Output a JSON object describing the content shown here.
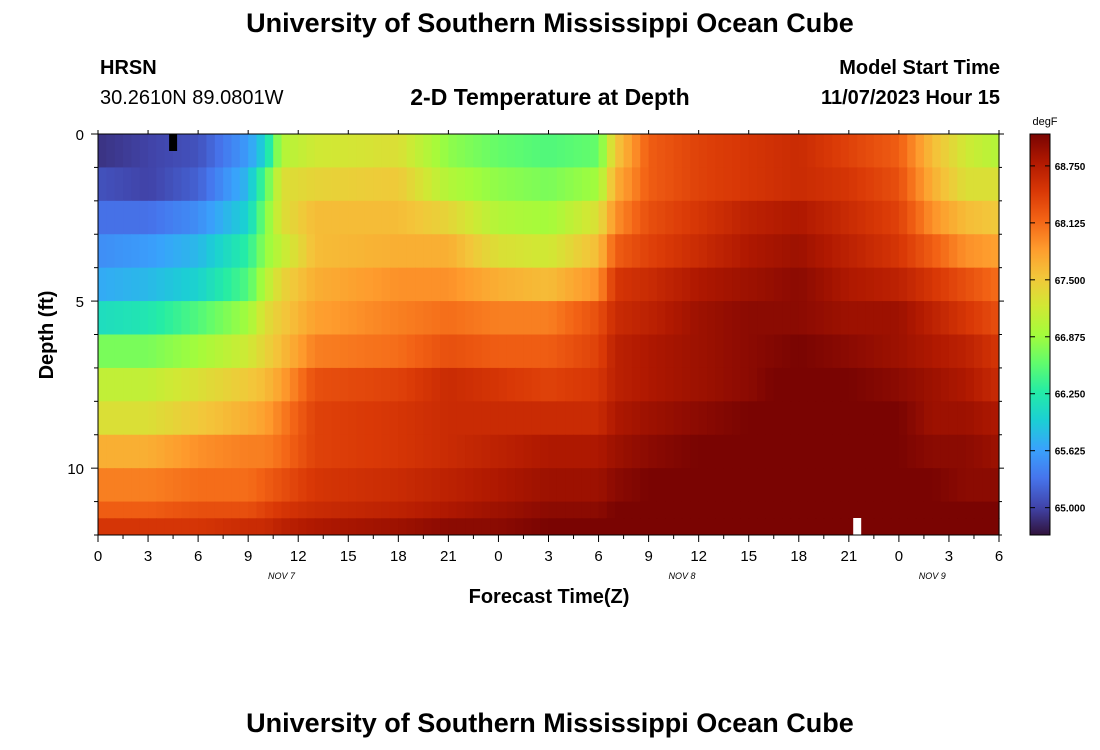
{
  "header": {
    "title": "University of Southern Mississippi Ocean Cube",
    "station_name": "HRSN",
    "station_coords": "30.2610N  89.0801W",
    "chart_heading": "2-D Temperature at Depth",
    "model_start_label": "Model Start Time",
    "model_start_value": "11/07/2023 Hour 15"
  },
  "footer": {
    "title": "University of Southern Mississippi Ocean Cube"
  },
  "chart_data": {
    "type": "heatmap",
    "title": "2-D Temperature at Depth",
    "xlabel": "Forecast Time(Z)",
    "ylabel": "Depth (ft)",
    "x_tick_labels": [
      "0",
      "3",
      "6",
      "9",
      "12",
      "15",
      "18",
      "21",
      "0",
      "3",
      "6",
      "9",
      "12",
      "15",
      "18",
      "21",
      "0",
      "3",
      "6"
    ],
    "x_date_labels": [
      {
        "label": "NOV 7",
        "hour": 11
      },
      {
        "label": "NOV 8",
        "hour": 35
      },
      {
        "label": "NOV 9",
        "hour": 50
      }
    ],
    "x_range_hours": [
      0,
      54
    ],
    "y_ticks": [
      0,
      5,
      10
    ],
    "y_range_ft": [
      0,
      12
    ],
    "colorbar": {
      "unit": "degF",
      "min": 64.7,
      "max": 69.1,
      "ticks": [
        65.0,
        65.625,
        66.25,
        66.875,
        67.5,
        68.125,
        68.75
      ],
      "tick_labels": [
        "65.000",
        "65.625",
        "66.250",
        "66.875",
        "67.500",
        "68.125",
        "68.750"
      ]
    },
    "depth_rows_ft": [
      0.5,
      1.5,
      2.5,
      3.5,
      4.5,
      5.5,
      6.5,
      7.5,
      8.5,
      9.5,
      10.5,
      11.5
    ],
    "bottom_row_depth_ft": 11.75,
    "keypoint_hours": [
      0,
      3,
      6,
      9,
      10,
      11,
      13,
      18,
      21,
      24,
      27,
      30,
      31,
      33,
      36,
      39,
      42,
      45,
      48,
      50,
      52,
      54
    ],
    "rows_degF": [
      [
        64.9,
        65.0,
        65.1,
        65.6,
        66.0,
        67.0,
        67.2,
        67.3,
        66.8,
        66.6,
        66.5,
        66.6,
        67.5,
        68.2,
        68.4,
        68.5,
        68.6,
        68.4,
        68.2,
        67.6,
        67.2,
        67.0
      ],
      [
        65.1,
        65.0,
        65.2,
        65.8,
        66.5,
        67.3,
        67.4,
        67.5,
        67.0,
        66.8,
        66.7,
        66.9,
        67.7,
        68.2,
        68.4,
        68.5,
        68.6,
        68.5,
        68.3,
        67.7,
        67.3,
        67.3
      ],
      [
        65.3,
        65.3,
        65.5,
        66.0,
        66.7,
        67.3,
        67.6,
        67.6,
        67.4,
        67.0,
        66.9,
        67.3,
        67.9,
        68.3,
        68.5,
        68.7,
        68.8,
        68.6,
        68.4,
        67.9,
        67.6,
        67.5
      ],
      [
        65.5,
        65.6,
        65.8,
        66.3,
        66.8,
        67.1,
        67.6,
        67.7,
        67.7,
        67.3,
        67.2,
        67.6,
        68.2,
        68.4,
        68.6,
        68.8,
        68.9,
        68.7,
        68.5,
        68.2,
        67.9,
        67.8
      ],
      [
        65.7,
        65.8,
        66.0,
        66.5,
        67.0,
        67.4,
        67.7,
        67.9,
        67.9,
        67.7,
        67.6,
        67.9,
        68.5,
        68.6,
        68.8,
        68.9,
        69.0,
        68.8,
        68.7,
        68.5,
        68.3,
        68.1
      ],
      [
        66.1,
        66.2,
        66.5,
        66.9,
        67.3,
        67.5,
        67.8,
        68.0,
        68.1,
        68.0,
        68.0,
        68.3,
        68.6,
        68.7,
        68.9,
        69.0,
        69.0,
        68.9,
        68.9,
        68.7,
        68.5,
        68.3
      ],
      [
        66.7,
        66.7,
        66.9,
        67.2,
        67.4,
        67.6,
        68.0,
        68.1,
        68.3,
        68.2,
        68.2,
        68.4,
        68.7,
        68.8,
        68.9,
        69.0,
        69.1,
        69.0,
        68.9,
        68.8,
        68.7,
        68.5
      ],
      [
        67.1,
        67.1,
        67.3,
        67.5,
        67.6,
        67.8,
        68.3,
        68.4,
        68.6,
        68.5,
        68.4,
        68.5,
        68.7,
        68.8,
        68.9,
        69.0,
        69.2,
        69.1,
        69.0,
        68.9,
        68.8,
        68.6
      ],
      [
        67.3,
        67.3,
        67.5,
        67.7,
        67.8,
        68.0,
        68.4,
        68.5,
        68.6,
        68.6,
        68.6,
        68.6,
        68.8,
        68.9,
        69.0,
        69.1,
        69.2,
        69.2,
        69.1,
        68.9,
        68.9,
        68.8
      ],
      [
        67.7,
        67.7,
        67.9,
        68.0,
        68.0,
        68.1,
        68.4,
        68.5,
        68.6,
        68.7,
        68.8,
        68.8,
        68.9,
        69.0,
        69.1,
        69.2,
        69.3,
        69.2,
        69.1,
        69.0,
        69.0,
        68.9
      ],
      [
        68.0,
        68.0,
        68.1,
        68.1,
        68.2,
        68.3,
        68.5,
        68.6,
        68.7,
        68.8,
        68.9,
        68.9,
        69.0,
        69.1,
        69.2,
        69.3,
        69.4,
        69.3,
        69.2,
        69.1,
        69.0,
        69.0
      ],
      [
        68.2,
        68.2,
        68.3,
        68.3,
        68.4,
        68.5,
        68.6,
        68.7,
        68.8,
        68.9,
        69.0,
        69.0,
        69.1,
        69.2,
        69.3,
        69.4,
        69.5,
        69.4,
        69.3,
        69.2,
        69.1,
        69.1
      ]
    ],
    "bottom_row_degF": [
      68.5,
      68.5,
      68.5,
      68.6,
      68.6,
      68.7,
      68.8,
      68.9,
      69.0,
      69.0,
      69.1,
      69.1,
      69.2,
      69.3,
      69.4,
      69.5,
      69.6,
      69.5,
      69.4,
      69.3,
      69.2,
      69.2
    ],
    "marker_min": {
      "label": "min",
      "hour": 4.5,
      "depth_ft": 0,
      "color": "#000000"
    },
    "marker_max": {
      "label": "max",
      "hour": 45.5,
      "depth_ft": 11.75,
      "color": "#ffffff"
    },
    "colormap": [
      "#30123b",
      "#4145ab",
      "#4675ed",
      "#39a2fc",
      "#1bcfd4",
      "#24eca6",
      "#61fc6c",
      "#a4fc3b",
      "#d1e834",
      "#f3c63a",
      "#fe9b2d",
      "#f36315",
      "#d93806",
      "#b11901",
      "#7a0402"
    ]
  }
}
